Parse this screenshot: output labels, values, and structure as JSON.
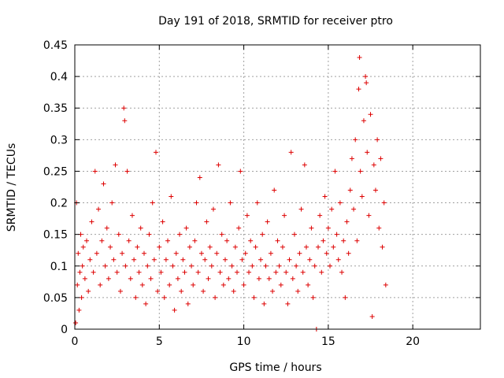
{
  "chart_data": {
    "type": "scatter",
    "title": "Day 191 of 2018, SRMTID for receiver ptro",
    "xlabel": "GPS time / hours",
    "ylabel": "SRMTID / TECUs",
    "xlim": [
      0,
      24
    ],
    "ylim": [
      0,
      0.45
    ],
    "xticks": [
      0,
      5,
      10,
      15,
      20
    ],
    "xtick_labels": [
      "0",
      "5",
      "10",
      "15",
      "20"
    ],
    "yticks": [
      0,
      0.05,
      0.1,
      0.15,
      0.2,
      0.25,
      0.3,
      0.35,
      0.4,
      0.45
    ],
    "ytick_labels": [
      "0",
      "0.05",
      "0.1",
      "0.15",
      "0.2",
      "0.25",
      "0.3",
      "0.35",
      "0.4",
      "0.45"
    ],
    "grid": true,
    "marker": "+",
    "color": "#dd0000",
    "series": [
      {
        "name": "ptro",
        "points": [
          [
            0.05,
            0.01
          ],
          [
            0.1,
            0.2
          ],
          [
            0.15,
            0.07
          ],
          [
            0.2,
            0.12
          ],
          [
            0.25,
            0.03
          ],
          [
            0.3,
            0.09
          ],
          [
            0.35,
            0.15
          ],
          [
            0.4,
            0.05
          ],
          [
            0.45,
            0.1
          ],
          [
            0.5,
            0.13
          ],
          [
            0.6,
            0.08
          ],
          [
            0.7,
            0.14
          ],
          [
            0.8,
            0.06
          ],
          [
            0.9,
            0.11
          ],
          [
            1.0,
            0.17
          ],
          [
            1.1,
            0.09
          ],
          [
            1.2,
            0.25
          ],
          [
            1.3,
            0.12
          ],
          [
            1.4,
            0.19
          ],
          [
            1.5,
            0.07
          ],
          [
            1.6,
            0.14
          ],
          [
            1.7,
            0.23
          ],
          [
            1.8,
            0.1
          ],
          [
            1.9,
            0.16
          ],
          [
            2.0,
            0.08
          ],
          [
            2.1,
            0.13
          ],
          [
            2.2,
            0.2
          ],
          [
            2.3,
            0.11
          ],
          [
            2.4,
            0.26
          ],
          [
            2.5,
            0.09
          ],
          [
            2.6,
            0.15
          ],
          [
            2.7,
            0.06
          ],
          [
            2.8,
            0.12
          ],
          [
            2.9,
            0.35
          ],
          [
            2.95,
            0.33
          ],
          [
            3.0,
            0.1
          ],
          [
            3.1,
            0.25
          ],
          [
            3.2,
            0.14
          ],
          [
            3.3,
            0.08
          ],
          [
            3.4,
            0.18
          ],
          [
            3.5,
            0.11
          ],
          [
            3.6,
            0.05
          ],
          [
            3.7,
            0.13
          ],
          [
            3.8,
            0.09
          ],
          [
            3.9,
            0.16
          ],
          [
            4.0,
            0.07
          ],
          [
            4.1,
            0.12
          ],
          [
            4.2,
            0.04
          ],
          [
            4.3,
            0.1
          ],
          [
            4.4,
            0.15
          ],
          [
            4.5,
            0.08
          ],
          [
            4.6,
            0.2
          ],
          [
            4.7,
            0.11
          ],
          [
            4.8,
            0.28
          ],
          [
            4.9,
            0.06
          ],
          [
            5.0,
            0.13
          ],
          [
            5.1,
            0.09
          ],
          [
            5.2,
            0.17
          ],
          [
            5.3,
            0.05
          ],
          [
            5.4,
            0.11
          ],
          [
            5.5,
            0.14
          ],
          [
            5.6,
            0.07
          ],
          [
            5.7,
            0.21
          ],
          [
            5.8,
            0.1
          ],
          [
            5.9,
            0.03
          ],
          [
            6.0,
            0.12
          ],
          [
            6.1,
            0.08
          ],
          [
            6.2,
            0.15
          ],
          [
            6.3,
            0.06
          ],
          [
            6.4,
            0.11
          ],
          [
            6.5,
            0.09
          ],
          [
            6.6,
            0.16
          ],
          [
            6.7,
            0.04
          ],
          [
            6.8,
            0.13
          ],
          [
            6.9,
            0.1
          ],
          [
            7.0,
            0.07
          ],
          [
            7.1,
            0.14
          ],
          [
            7.2,
            0.2
          ],
          [
            7.3,
            0.09
          ],
          [
            7.4,
            0.24
          ],
          [
            7.5,
            0.12
          ],
          [
            7.6,
            0.06
          ],
          [
            7.7,
            0.11
          ],
          [
            7.8,
            0.17
          ],
          [
            7.9,
            0.08
          ],
          [
            8.0,
            0.13
          ],
          [
            8.1,
            0.1
          ],
          [
            8.2,
            0.19
          ],
          [
            8.3,
            0.05
          ],
          [
            8.4,
            0.12
          ],
          [
            8.5,
            0.26
          ],
          [
            8.6,
            0.09
          ],
          [
            8.7,
            0.15
          ],
          [
            8.8,
            0.07
          ],
          [
            8.9,
            0.11
          ],
          [
            9.0,
            0.14
          ],
          [
            9.1,
            0.08
          ],
          [
            9.2,
            0.2
          ],
          [
            9.3,
            0.1
          ],
          [
            9.4,
            0.06
          ],
          [
            9.5,
            0.13
          ],
          [
            9.6,
            0.09
          ],
          [
            9.7,
            0.16
          ],
          [
            9.8,
            0.25
          ],
          [
            9.9,
            0.11
          ],
          [
            10.0,
            0.07
          ],
          [
            10.1,
            0.12
          ],
          [
            10.2,
            0.18
          ],
          [
            10.3,
            0.09
          ],
          [
            10.4,
            0.14
          ],
          [
            10.5,
            0.1
          ],
          [
            10.6,
            0.05
          ],
          [
            10.7,
            0.13
          ],
          [
            10.8,
            0.2
          ],
          [
            10.9,
            0.08
          ],
          [
            11.0,
            0.11
          ],
          [
            11.1,
            0.15
          ],
          [
            11.2,
            0.04
          ],
          [
            11.3,
            0.1
          ],
          [
            11.4,
            0.17
          ],
          [
            11.5,
            0.08
          ],
          [
            11.6,
            0.12
          ],
          [
            11.7,
            0.06
          ],
          [
            11.8,
            0.22
          ],
          [
            11.9,
            0.09
          ],
          [
            12.0,
            0.14
          ],
          [
            12.1,
            0.1
          ],
          [
            12.2,
            0.07
          ],
          [
            12.3,
            0.13
          ],
          [
            12.4,
            0.18
          ],
          [
            12.5,
            0.09
          ],
          [
            12.6,
            0.04
          ],
          [
            12.7,
            0.11
          ],
          [
            12.8,
            0.28
          ],
          [
            12.9,
            0.08
          ],
          [
            13.0,
            0.15
          ],
          [
            13.1,
            0.1
          ],
          [
            13.2,
            0.06
          ],
          [
            13.3,
            0.12
          ],
          [
            13.4,
            0.19
          ],
          [
            13.5,
            0.09
          ],
          [
            13.6,
            0.26
          ],
          [
            13.7,
            0.13
          ],
          [
            13.8,
            0.07
          ],
          [
            13.9,
            0.11
          ],
          [
            14.0,
            0.16
          ],
          [
            14.1,
            0.05
          ],
          [
            14.2,
            0.1
          ],
          [
            14.3,
            0.0
          ],
          [
            14.4,
            0.13
          ],
          [
            14.5,
            0.18
          ],
          [
            14.6,
            0.09
          ],
          [
            14.7,
            0.14
          ],
          [
            14.8,
            0.21
          ],
          [
            14.9,
            0.12
          ],
          [
            15.0,
            0.16
          ],
          [
            15.1,
            0.1
          ],
          [
            15.2,
            0.19
          ],
          [
            15.3,
            0.13
          ],
          [
            15.4,
            0.25
          ],
          [
            15.5,
            0.15
          ],
          [
            15.6,
            0.11
          ],
          [
            15.7,
            0.2
          ],
          [
            15.8,
            0.09
          ],
          [
            15.9,
            0.14
          ],
          [
            16.0,
            0.05
          ],
          [
            16.1,
            0.17
          ],
          [
            16.2,
            0.12
          ],
          [
            16.3,
            0.22
          ],
          [
            16.4,
            0.27
          ],
          [
            16.5,
            0.19
          ],
          [
            16.6,
            0.3
          ],
          [
            16.7,
            0.14
          ],
          [
            16.8,
            0.38
          ],
          [
            16.85,
            0.43
          ],
          [
            16.9,
            0.25
          ],
          [
            17.0,
            0.21
          ],
          [
            17.1,
            0.33
          ],
          [
            17.2,
            0.4
          ],
          [
            17.25,
            0.39
          ],
          [
            17.3,
            0.28
          ],
          [
            17.4,
            0.18
          ],
          [
            17.5,
            0.34
          ],
          [
            17.6,
            0.02
          ],
          [
            17.7,
            0.26
          ],
          [
            17.8,
            0.22
          ],
          [
            17.9,
            0.3
          ],
          [
            18.0,
            0.16
          ],
          [
            18.1,
            0.27
          ],
          [
            18.2,
            0.13
          ],
          [
            18.3,
            0.2
          ],
          [
            18.4,
            0.07
          ]
        ]
      }
    ]
  }
}
